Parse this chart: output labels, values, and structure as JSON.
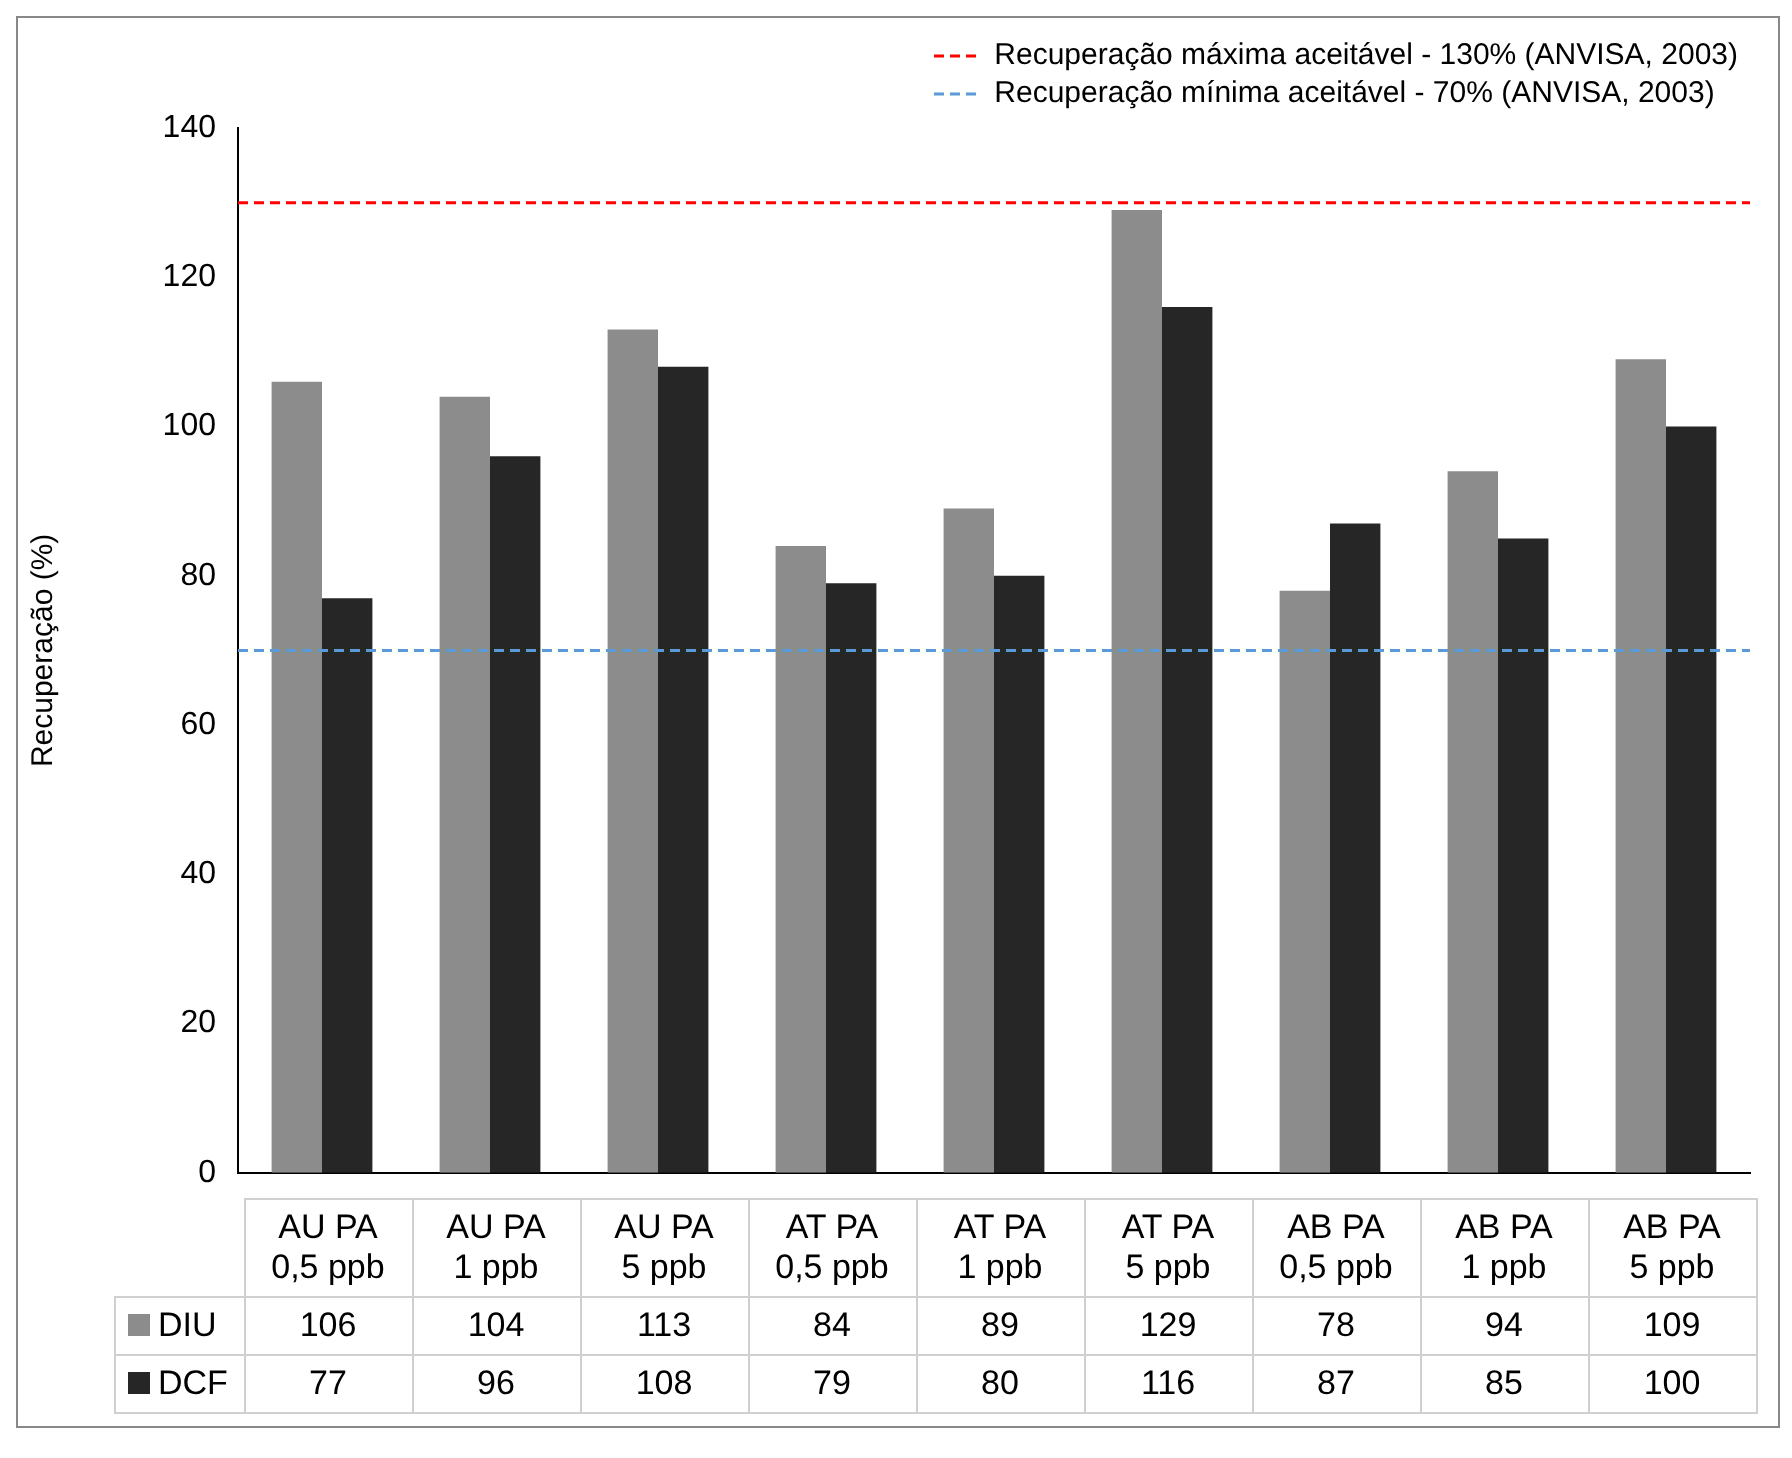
{
  "chart_data": {
    "type": "bar",
    "ylabel": "Recuperação (%)",
    "categories": [
      "AU PA\n0,5 ppb",
      "AU PA\n1 ppb",
      "AU PA\n5 ppb",
      "AT PA\n0,5 ppb",
      "AT PA\n1 ppb",
      "AT PA\n5 ppb",
      "AB PA\n0,5 ppb",
      "AB PA\n1 ppb",
      "AB PA\n5 ppb"
    ],
    "series": [
      {
        "name": "DIU",
        "color": "#8c8c8c",
        "values": [
          106,
          104,
          113,
          84,
          89,
          129,
          78,
          94,
          109
        ]
      },
      {
        "name": "DCF",
        "color": "#262626",
        "values": [
          77,
          96,
          108,
          79,
          80,
          116,
          87,
          85,
          100
        ]
      }
    ],
    "ylim": [
      0,
      140
    ],
    "yticks": [
      0,
      20,
      40,
      60,
      80,
      100,
      120,
      140
    ],
    "grid": false,
    "data_labels": true,
    "legend": "bottom left",
    "ref_lines": [
      {
        "axis": "y",
        "value": 130,
        "label": "Recuperação máxima aceitável - 130% (ANVISA, 2003)",
        "color": "#ff0000",
        "line_style": "dashed"
      },
      {
        "axis": "y",
        "value": 70,
        "label": "Recuperação mínima aceitável - 70% (ANVISA, 2003)",
        "color": "#5b9bd5",
        "line_style": "dashed"
      }
    ]
  }
}
